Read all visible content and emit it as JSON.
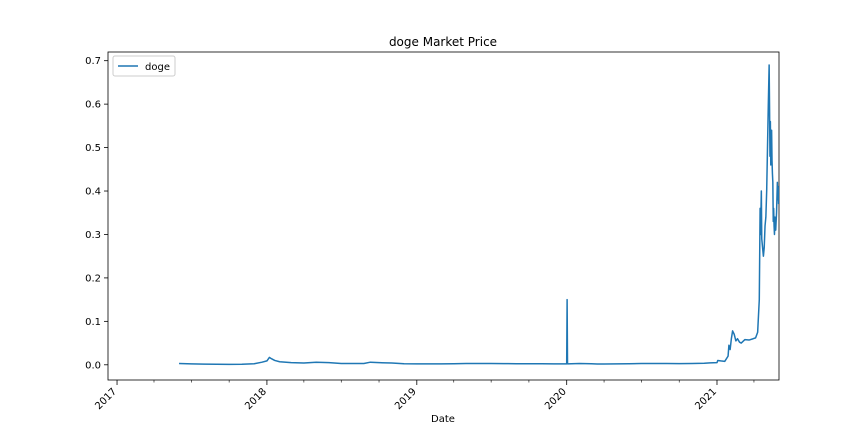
{
  "chart_data": {
    "type": "line",
    "title": "doge Market Price",
    "xlabel": "Date",
    "ylabel": "",
    "xlim": [
      "2016-12-10",
      "2021-06-01"
    ],
    "ylim": [
      -0.035,
      0.72
    ],
    "x_ticks": [
      {
        "date": "2017-01-01",
        "label": "2017"
      },
      {
        "date": "2018-01-01",
        "label": "2018"
      },
      {
        "date": "2019-01-01",
        "label": "2019"
      },
      {
        "date": "2020-01-01",
        "label": "2020"
      },
      {
        "date": "2021-01-01",
        "label": "2021"
      }
    ],
    "y_ticks": [
      0.0,
      0.1,
      0.2,
      0.3,
      0.4,
      0.5,
      0.6,
      0.7
    ],
    "y_tick_labels": [
      "0.0",
      "0.1",
      "0.2",
      "0.3",
      "0.4",
      "0.5",
      "0.6",
      "0.7"
    ],
    "grid": false,
    "legend_position": "top-left",
    "series": [
      {
        "name": "doge",
        "color": "#1f77b4",
        "points": [
          [
            "2017-06-01",
            0.003
          ],
          [
            "2017-07-01",
            0.002
          ],
          [
            "2017-08-01",
            0.0015
          ],
          [
            "2017-09-01",
            0.0012
          ],
          [
            "2017-10-01",
            0.0011
          ],
          [
            "2017-11-01",
            0.0014
          ],
          [
            "2017-12-01",
            0.0025
          ],
          [
            "2017-12-20",
            0.006
          ],
          [
            "2018-01-01",
            0.009
          ],
          [
            "2018-01-07",
            0.017
          ],
          [
            "2018-01-12",
            0.014
          ],
          [
            "2018-01-20",
            0.01
          ],
          [
            "2018-02-01",
            0.007
          ],
          [
            "2018-03-01",
            0.005
          ],
          [
            "2018-04-01",
            0.004
          ],
          [
            "2018-05-01",
            0.006
          ],
          [
            "2018-06-01",
            0.005
          ],
          [
            "2018-07-01",
            0.003
          ],
          [
            "2018-08-01",
            0.003
          ],
          [
            "2018-08-25",
            0.003
          ],
          [
            "2018-09-10",
            0.006
          ],
          [
            "2018-10-01",
            0.005
          ],
          [
            "2018-11-01",
            0.004
          ],
          [
            "2018-12-01",
            0.0025
          ],
          [
            "2019-01-01",
            0.002
          ],
          [
            "2019-02-01",
            0.002
          ],
          [
            "2019-03-01",
            0.002
          ],
          [
            "2019-04-01",
            0.0025
          ],
          [
            "2019-05-01",
            0.003
          ],
          [
            "2019-06-01",
            0.003
          ],
          [
            "2019-07-01",
            0.003
          ],
          [
            "2019-08-01",
            0.0028
          ],
          [
            "2019-09-01",
            0.0025
          ],
          [
            "2019-10-01",
            0.0025
          ],
          [
            "2019-11-01",
            0.0024
          ],
          [
            "2019-12-01",
            0.0022
          ],
          [
            "2020-01-01",
            0.002
          ],
          [
            "2020-01-02",
            0.15
          ],
          [
            "2020-01-03",
            0.002
          ],
          [
            "2020-02-01",
            0.003
          ],
          [
            "2020-03-01",
            0.0025
          ],
          [
            "2020-03-15",
            0.0017
          ],
          [
            "2020-04-01",
            0.0018
          ],
          [
            "2020-05-01",
            0.002
          ],
          [
            "2020-06-01",
            0.0025
          ],
          [
            "2020-07-01",
            0.003
          ],
          [
            "2020-08-01",
            0.003
          ],
          [
            "2020-09-01",
            0.003
          ],
          [
            "2020-10-01",
            0.0027
          ],
          [
            "2020-11-01",
            0.003
          ],
          [
            "2020-12-01",
            0.0035
          ],
          [
            "2020-12-15",
            0.0045
          ],
          [
            "2021-01-01",
            0.005
          ],
          [
            "2021-01-03",
            0.01
          ],
          [
            "2021-01-10",
            0.009
          ],
          [
            "2021-01-20",
            0.008
          ],
          [
            "2021-01-28",
            0.02
          ],
          [
            "2021-01-30",
            0.045
          ],
          [
            "2021-02-02",
            0.035
          ],
          [
            "2021-02-05",
            0.06
          ],
          [
            "2021-02-08",
            0.078
          ],
          [
            "2021-02-12",
            0.07
          ],
          [
            "2021-02-16",
            0.055
          ],
          [
            "2021-02-20",
            0.06
          ],
          [
            "2021-02-25",
            0.052
          ],
          [
            "2021-03-01",
            0.05
          ],
          [
            "2021-03-10",
            0.058
          ],
          [
            "2021-03-20",
            0.057
          ],
          [
            "2021-03-30",
            0.06
          ],
          [
            "2021-04-05",
            0.062
          ],
          [
            "2021-04-10",
            0.075
          ],
          [
            "2021-04-14",
            0.15
          ],
          [
            "2021-04-16",
            0.36
          ],
          [
            "2021-04-17",
            0.3
          ],
          [
            "2021-04-19",
            0.4
          ],
          [
            "2021-04-20",
            0.29
          ],
          [
            "2021-04-22",
            0.27
          ],
          [
            "2021-04-24",
            0.25
          ],
          [
            "2021-04-26",
            0.27
          ],
          [
            "2021-04-28",
            0.32
          ],
          [
            "2021-04-30",
            0.34
          ],
          [
            "2021-05-02",
            0.4
          ],
          [
            "2021-05-04",
            0.5
          ],
          [
            "2021-05-06",
            0.6
          ],
          [
            "2021-05-08",
            0.69
          ],
          [
            "2021-05-09",
            0.59
          ],
          [
            "2021-05-10",
            0.48
          ],
          [
            "2021-05-11",
            0.56
          ],
          [
            "2021-05-12",
            0.46
          ],
          [
            "2021-05-13",
            0.5
          ],
          [
            "2021-05-14",
            0.54
          ],
          [
            "2021-05-15",
            0.47
          ],
          [
            "2021-05-16",
            0.44
          ],
          [
            "2021-05-17",
            0.42
          ],
          [
            "2021-05-18",
            0.33
          ],
          [
            "2021-05-19",
            0.36
          ],
          [
            "2021-05-20",
            0.32
          ],
          [
            "2021-05-21",
            0.3
          ],
          [
            "2021-05-22",
            0.34
          ],
          [
            "2021-05-24",
            0.31
          ],
          [
            "2021-05-26",
            0.35
          ],
          [
            "2021-05-28",
            0.42
          ],
          [
            "2021-05-29",
            0.38
          ],
          [
            "2021-05-30",
            0.41
          ],
          [
            "2021-05-31",
            0.37
          ]
        ]
      }
    ]
  }
}
